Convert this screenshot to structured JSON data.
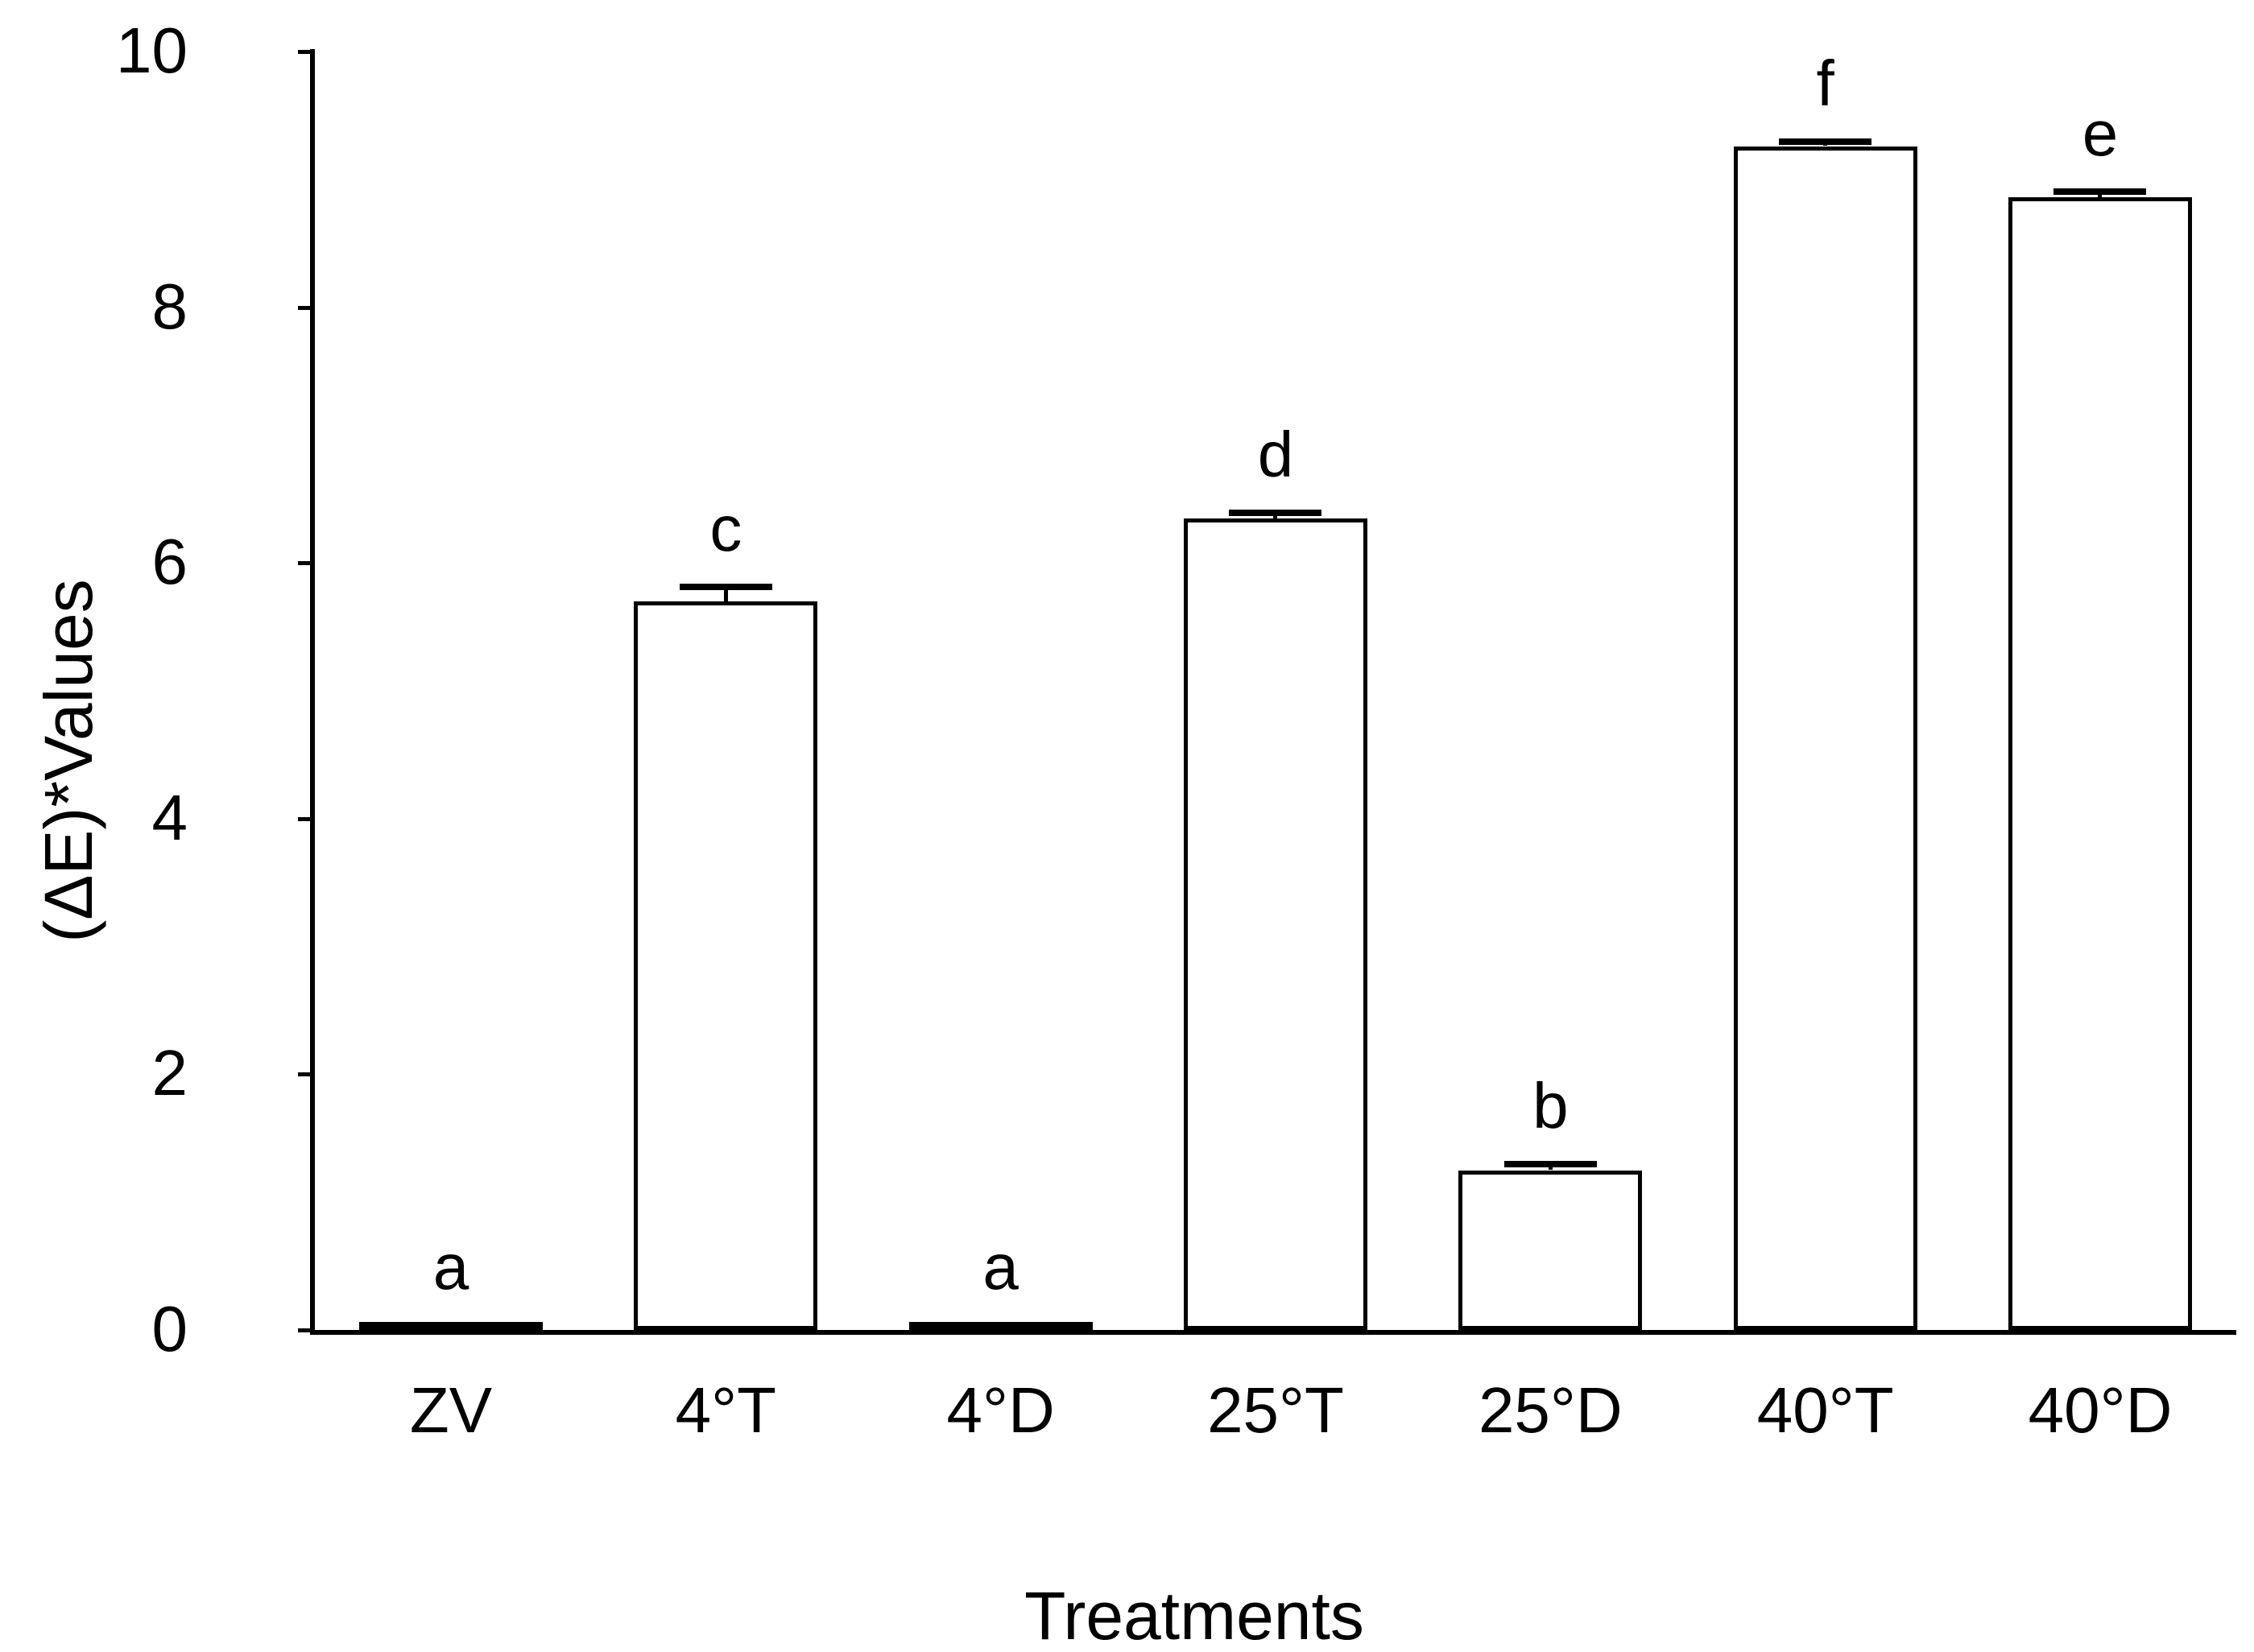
{
  "chart_data": {
    "type": "bar",
    "title": "",
    "xlabel": "Treatments",
    "ylabel": "(ΔE)*Values",
    "categories": [
      "ZV",
      "4°T",
      "4°D",
      "25°T",
      "25°D",
      "40°T",
      "40°D"
    ],
    "values": [
      0.06,
      5.7,
      0.06,
      6.35,
      1.25,
      9.26,
      8.86
    ],
    "errors": [
      0,
      0.14,
      0,
      0.07,
      0.07,
      0.06,
      0.07
    ],
    "sig_letters": [
      "a",
      "c",
      "a",
      "d",
      "b",
      "f",
      "e"
    ],
    "yticks": [
      0,
      2,
      4,
      6,
      8,
      10
    ],
    "ylim": [
      0,
      10
    ],
    "grid": false,
    "legend_position": "none",
    "bar_fill": "#ffffff",
    "bar_stroke": "#000000",
    "text_color": "#000000",
    "background": "#ffffff"
  }
}
